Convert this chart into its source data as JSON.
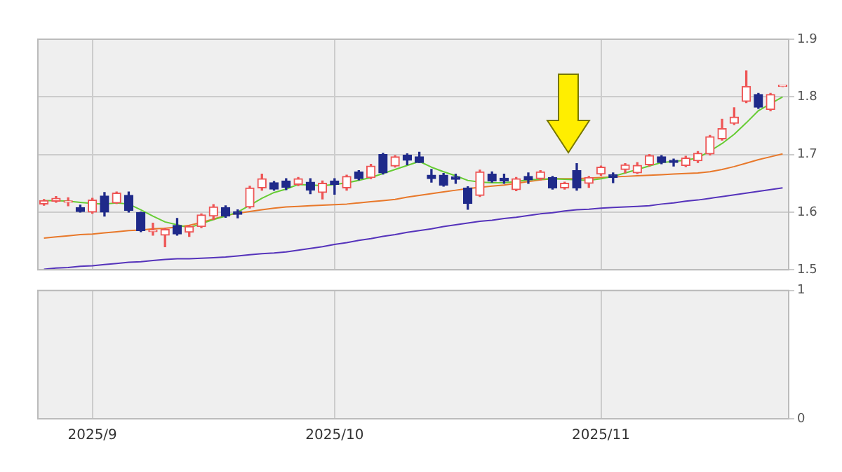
{
  "chart_data": [
    {
      "type": "candlestick",
      "tick_labels": "y",
      "grid": true,
      "ylim": [
        1.5,
        1.9
      ],
      "yticks": [
        1.5,
        1.6,
        1.7,
        1.8,
        1.9
      ],
      "categories": [
        null,
        null,
        null,
        null,
        "2025/9",
        null,
        null,
        null,
        null,
        null,
        null,
        null,
        null,
        null,
        null,
        null,
        null,
        null,
        null,
        null,
        null,
        null,
        null,
        null,
        "2025/10",
        null,
        null,
        null,
        null,
        null,
        null,
        null,
        null,
        null,
        null,
        null,
        null,
        null,
        null,
        null,
        null,
        null,
        null,
        null,
        null,
        null,
        "2025/11",
        null,
        null,
        null,
        null,
        null,
        null,
        null,
        null,
        null,
        null,
        null,
        null,
        null,
        null,
        null
      ],
      "ohlc": [
        [
          1.614,
          1.622,
          1.612,
          1.62
        ],
        [
          1.619,
          1.627,
          1.617,
          1.624
        ],
        [
          1.617,
          1.625,
          1.611,
          1.617
        ],
        [
          1.608,
          1.612,
          1.6,
          1.601
        ],
        [
          1.6,
          1.624,
          1.598,
          1.621
        ],
        [
          1.628,
          1.634,
          1.593,
          1.6
        ],
        [
          1.616,
          1.635,
          1.615,
          1.633
        ],
        [
          1.629,
          1.635,
          1.6,
          1.603
        ],
        [
          1.599,
          1.6,
          1.566,
          1.568
        ],
        [
          1.566,
          1.581,
          1.56,
          1.569
        ],
        [
          1.56,
          1.572,
          1.54,
          1.57
        ],
        [
          1.577,
          1.589,
          1.56,
          1.562
        ],
        [
          1.565,
          1.577,
          1.558,
          1.575
        ],
        [
          1.575,
          1.597,
          1.573,
          1.595
        ],
        [
          1.593,
          1.613,
          1.587,
          1.609
        ],
        [
          1.608,
          1.611,
          1.591,
          1.593
        ],
        [
          1.601,
          1.604,
          1.59,
          1.596
        ],
        [
          1.609,
          1.645,
          1.607,
          1.642
        ],
        [
          1.642,
          1.666,
          1.638,
          1.658
        ],
        [
          1.651,
          1.653,
          1.638,
          1.64
        ],
        [
          1.654,
          1.658,
          1.639,
          1.643
        ],
        [
          1.648,
          1.66,
          1.646,
          1.658
        ],
        [
          1.652,
          1.658,
          1.632,
          1.638
        ],
        [
          1.634,
          1.654,
          1.623,
          1.65
        ],
        [
          1.654,
          1.658,
          1.631,
          1.648
        ],
        [
          1.642,
          1.664,
          1.638,
          1.662
        ],
        [
          1.67,
          1.672,
          1.656,
          1.658
        ],
        [
          1.66,
          1.683,
          1.658,
          1.68
        ],
        [
          1.7,
          1.702,
          1.666,
          1.668
        ],
        [
          1.68,
          1.698,
          1.678,
          1.696
        ],
        [
          1.699,
          1.701,
          1.682,
          1.69
        ],
        [
          1.696,
          1.704,
          1.686,
          1.686
        ],
        [
          1.664,
          1.674,
          1.652,
          1.658
        ],
        [
          1.664,
          1.667,
          1.645,
          1.647
        ],
        [
          1.661,
          1.666,
          1.65,
          1.657
        ],
        [
          1.642,
          1.644,
          1.605,
          1.615
        ],
        [
          1.629,
          1.673,
          1.627,
          1.67
        ],
        [
          1.666,
          1.67,
          1.652,
          1.654
        ],
        [
          1.659,
          1.666,
          1.65,
          1.654
        ],
        [
          1.639,
          1.66,
          1.637,
          1.658
        ],
        [
          1.662,
          1.668,
          1.65,
          1.656
        ],
        [
          1.658,
          1.672,
          1.656,
          1.67
        ],
        [
          1.66,
          1.662,
          1.64,
          1.642
        ],
        [
          1.642,
          1.652,
          1.64,
          1.65
        ],
        [
          1.672,
          1.684,
          1.638,
          1.642
        ],
        [
          1.65,
          1.662,
          1.643,
          1.66
        ],
        [
          1.666,
          1.68,
          1.664,
          1.678
        ],
        [
          1.665,
          1.668,
          1.651,
          1.66
        ],
        [
          1.674,
          1.684,
          1.668,
          1.682
        ],
        [
          1.668,
          1.686,
          1.667,
          1.681
        ],
        [
          1.682,
          1.7,
          1.68,
          1.698
        ],
        [
          1.696,
          1.698,
          1.684,
          1.686
        ],
        [
          1.69,
          1.692,
          1.68,
          1.686
        ],
        [
          1.681,
          1.697,
          1.679,
          1.694
        ],
        [
          1.689,
          1.705,
          1.686,
          1.702
        ],
        [
          1.701,
          1.733,
          1.699,
          1.731
        ],
        [
          1.727,
          1.761,
          1.725,
          1.745
        ],
        [
          1.754,
          1.781,
          1.752,
          1.765
        ],
        [
          1.792,
          1.845,
          1.79,
          1.818
        ],
        [
          1.804,
          1.806,
          1.78,
          1.782
        ],
        [
          1.778,
          1.806,
          1.776,
          1.804
        ],
        [
          1.818,
          1.818,
          1.818,
          1.818
        ]
      ],
      "colors": [
        "#ee5555",
        "#ee5555",
        "#ee5555",
        "#1f2a8a",
        "#ee5555",
        "#1f2a8a",
        "#ee5555",
        "#1f2a8a",
        "#1f2a8a",
        "#ee5555",
        "#ee5555",
        "#1f2a8a",
        "#ee5555",
        "#ee5555",
        "#ee5555",
        "#1f2a8a",
        "#1f2a8a",
        "#ee5555",
        "#ee5555",
        "#1f2a8a",
        "#1f2a8a",
        "#ee5555",
        "#1f2a8a",
        "#ee5555",
        "#1f2a8a",
        "#ee5555",
        "#1f2a8a",
        "#ee5555",
        "#1f2a8a",
        "#ee5555",
        "#1f2a8a",
        "#1f2a8a",
        "#1f2a8a",
        "#1f2a8a",
        "#1f2a8a",
        "#1f2a8a",
        "#ee5555",
        "#1f2a8a",
        "#1f2a8a",
        "#ee5555",
        "#1f2a8a",
        "#ee5555",
        "#1f2a8a",
        "#ee5555",
        "#1f2a8a",
        "#ee5555",
        "#ee5555",
        "#1f2a8a",
        "#ee5555",
        "#ee5555",
        "#ee5555",
        "#1f2a8a",
        "#1f2a8a",
        "#ee5555",
        "#ee5555",
        "#ee5555",
        "#ee5555",
        "#ee5555",
        "#ee5555",
        "#1f2a8a",
        "#ee5555",
        "#ee5555"
      ],
      "series": [
        {
          "type": "line",
          "color": "#66cc33",
          "values": [
            1.62,
            1.62,
            1.619,
            1.617,
            1.615,
            1.614,
            1.616,
            1.614,
            1.604,
            1.593,
            1.583,
            1.578,
            1.573,
            1.58,
            1.587,
            1.593,
            1.6,
            1.612,
            1.624,
            1.634,
            1.64,
            1.648,
            1.647,
            1.646,
            1.648,
            1.651,
            1.655,
            1.66,
            1.667,
            1.674,
            1.681,
            1.688,
            1.678,
            1.67,
            1.663,
            1.655,
            1.652,
            1.651,
            1.651,
            1.653,
            1.656,
            1.657,
            1.658,
            1.657,
            1.656,
            1.655,
            1.658,
            1.662,
            1.668,
            1.674,
            1.68,
            1.686,
            1.688,
            1.69,
            1.694,
            1.706,
            1.719,
            1.735,
            1.755,
            1.776,
            1.788,
            1.8
          ]
        },
        {
          "type": "line",
          "color": "#e8782a",
          "values": [
            1.555,
            1.557,
            1.559,
            1.561,
            1.562,
            1.564,
            1.566,
            1.568,
            1.569,
            1.571,
            1.572,
            1.574,
            1.577,
            1.582,
            1.588,
            1.594,
            1.598,
            1.601,
            1.604,
            1.607,
            1.609,
            1.61,
            1.611,
            1.612,
            1.613,
            1.614,
            1.616,
            1.618,
            1.62,
            1.622,
            1.626,
            1.629,
            1.632,
            1.635,
            1.638,
            1.641,
            1.643,
            1.645,
            1.647,
            1.65,
            1.653,
            1.656,
            1.658,
            1.658,
            1.658,
            1.659,
            1.66,
            1.661,
            1.662,
            1.663,
            1.664,
            1.665,
            1.666,
            1.667,
            1.668,
            1.67,
            1.674,
            1.679,
            1.685,
            1.691,
            1.696,
            1.701
          ]
        },
        {
          "type": "line",
          "color": "#5533bb",
          "values": [
            1.501,
            1.503,
            1.504,
            1.506,
            1.507,
            1.509,
            1.511,
            1.513,
            1.514,
            1.516,
            1.518,
            1.519,
            1.519,
            1.52,
            1.521,
            1.522,
            1.524,
            1.526,
            1.528,
            1.529,
            1.531,
            1.534,
            1.537,
            1.54,
            1.544,
            1.547,
            1.551,
            1.554,
            1.558,
            1.561,
            1.565,
            1.568,
            1.571,
            1.575,
            1.578,
            1.581,
            1.584,
            1.586,
            1.589,
            1.591,
            1.594,
            1.597,
            1.599,
            1.602,
            1.604,
            1.605,
            1.607,
            1.608,
            1.609,
            1.61,
            1.611,
            1.614,
            1.616,
            1.619,
            1.621,
            1.624,
            1.627,
            1.63,
            1.633,
            1.636,
            1.639,
            1.642
          ]
        }
      ]
    },
    {
      "type": "bar",
      "grid": true,
      "ylim": [
        0,
        1
      ],
      "yticks": [
        0,
        1
      ],
      "categories": [
        null,
        null,
        null,
        null,
        "2025/9",
        null,
        null,
        null,
        null,
        null,
        null,
        null,
        null,
        null,
        null,
        null,
        null,
        null,
        null,
        null,
        null,
        null,
        null,
        null,
        "2025/10",
        null,
        null,
        null,
        null,
        null,
        null,
        null,
        null,
        null,
        null,
        null,
        null,
        null,
        null,
        null,
        null,
        null,
        null,
        null,
        null,
        null,
        "2025/11",
        null,
        null,
        null,
        null,
        null,
        null,
        null,
        null,
        null,
        null,
        null,
        null,
        null,
        null,
        null
      ],
      "values": [
        null,
        null,
        null,
        null,
        null,
        null,
        null,
        null,
        null,
        null,
        null,
        null,
        null,
        null,
        null,
        null,
        null,
        null,
        null,
        null,
        null,
        null,
        null,
        null,
        null,
        null,
        null,
        null,
        null,
        null,
        null,
        null,
        null,
        null,
        null,
        null,
        null,
        null,
        null,
        null,
        null,
        null,
        null,
        null,
        null,
        null,
        null,
        null,
        null,
        null,
        null,
        null,
        null,
        null,
        null,
        null,
        null,
        null,
        null,
        null,
        null,
        null
      ]
    }
  ]
}
